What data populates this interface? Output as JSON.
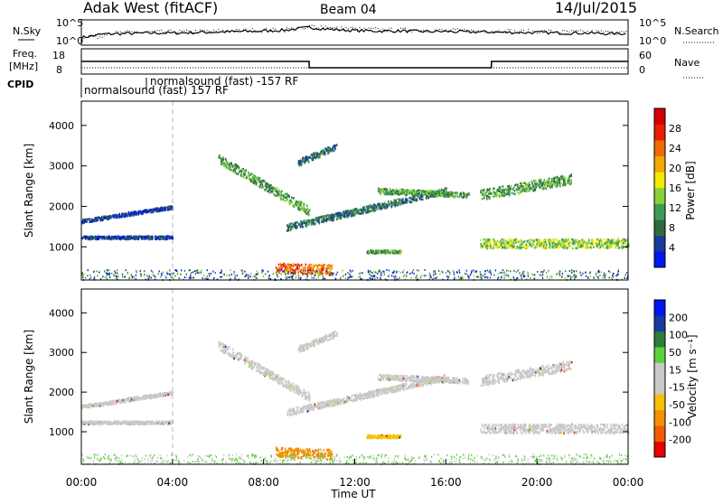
{
  "header": {
    "title": "Adak West (fitACF)",
    "beam": "Beam 04",
    "date": "14/Jul/2015"
  },
  "colors": {
    "power": [
      "#0016f0",
      "#1a3aa0",
      "#2e6b3e",
      "#3f9a55",
      "#86d23a",
      "#f2e800",
      "#f5a800",
      "#f06a00",
      "#e81e00",
      "#d40000"
    ],
    "velocity": [
      "#e80000",
      "#f25a00",
      "#f58f00",
      "#f7c000",
      "#c9c9c9",
      "#c9c9c9",
      "#5ad23a",
      "#2e7d3a",
      "#1a3aa0",
      "#0016f0"
    ],
    "ground_scatter": "#c0c0c0"
  },
  "chart_data": [
    {
      "type": "line",
      "panel": "noise",
      "ylabel": "N.Sky",
      "ylabel_right": "N.Search",
      "yticks_left": [
        "10^5",
        "10^0"
      ],
      "yticks_right": [
        "10^5",
        "10^0"
      ],
      "x": [
        0,
        1,
        2,
        3,
        4,
        5,
        6,
        7,
        8,
        9,
        10,
        11,
        12,
        13,
        14,
        15,
        16,
        17,
        18,
        19,
        20,
        21,
        22,
        23,
        24
      ],
      "series": [
        {
          "values": [
            1.5,
            2.2,
            2.3,
            2.4,
            2.4,
            2.5,
            2.6,
            2.7,
            2.8,
            3.0,
            3.5,
            3.1,
            2.9,
            2.8,
            2.8,
            2.7,
            2.7,
            2.6,
            2.6,
            2.5,
            2.5,
            2.4,
            2.4,
            2.3,
            2.3
          ]
        }
      ]
    },
    {
      "type": "line",
      "panel": "frequency",
      "ylabel": "Freq.",
      "yunit": "[MHz]",
      "yticks_left": [
        "18",
        "8"
      ],
      "ylabel_right": "Nave",
      "yticks_right": [
        "60",
        "0"
      ],
      "x": [
        0,
        4,
        10,
        18,
        24
      ],
      "series": [
        {
          "values": [
            13,
            13,
            10.5,
            13,
            13
          ]
        }
      ]
    },
    {
      "type": "table",
      "panel": "cpid",
      "ylabel": "CPID",
      "segments": [
        {
          "start": 0,
          "end": 4,
          "label": "normalsound (fast) 157 RF"
        },
        {
          "start": 4,
          "end": 24,
          "label": "normalsound (fast) -157 RF"
        }
      ]
    },
    {
      "type": "heatmap",
      "panel": "power",
      "ylabel": "Slant Range [km]",
      "colorbar_label": "Power [dB]",
      "colorbar_ticks": [
        "4",
        "8",
        "12",
        "16",
        "20",
        "24",
        "28"
      ],
      "ylim": [
        180,
        4600
      ],
      "yticks": [
        "1000",
        "2000",
        "3000",
        "4000"
      ],
      "xlim": [
        0,
        24
      ]
    },
    {
      "type": "heatmap",
      "panel": "velocity",
      "ylabel": "Slant Range [km]",
      "colorbar_label": "Velocity [m s⁻¹]",
      "colorbar_ticks": [
        "200",
        "100",
        "50",
        "15",
        "-15",
        "-50",
        "-100",
        "-200"
      ],
      "ylim": [
        180,
        4600
      ],
      "yticks": [
        "1000",
        "2000",
        "3000",
        "4000"
      ],
      "xlim": [
        0,
        24
      ],
      "xticks": [
        "00:00",
        "04:00",
        "08:00",
        "12:00",
        "16:00",
        "20:00",
        "00:00"
      ],
      "xlabel": "Time UT"
    }
  ]
}
